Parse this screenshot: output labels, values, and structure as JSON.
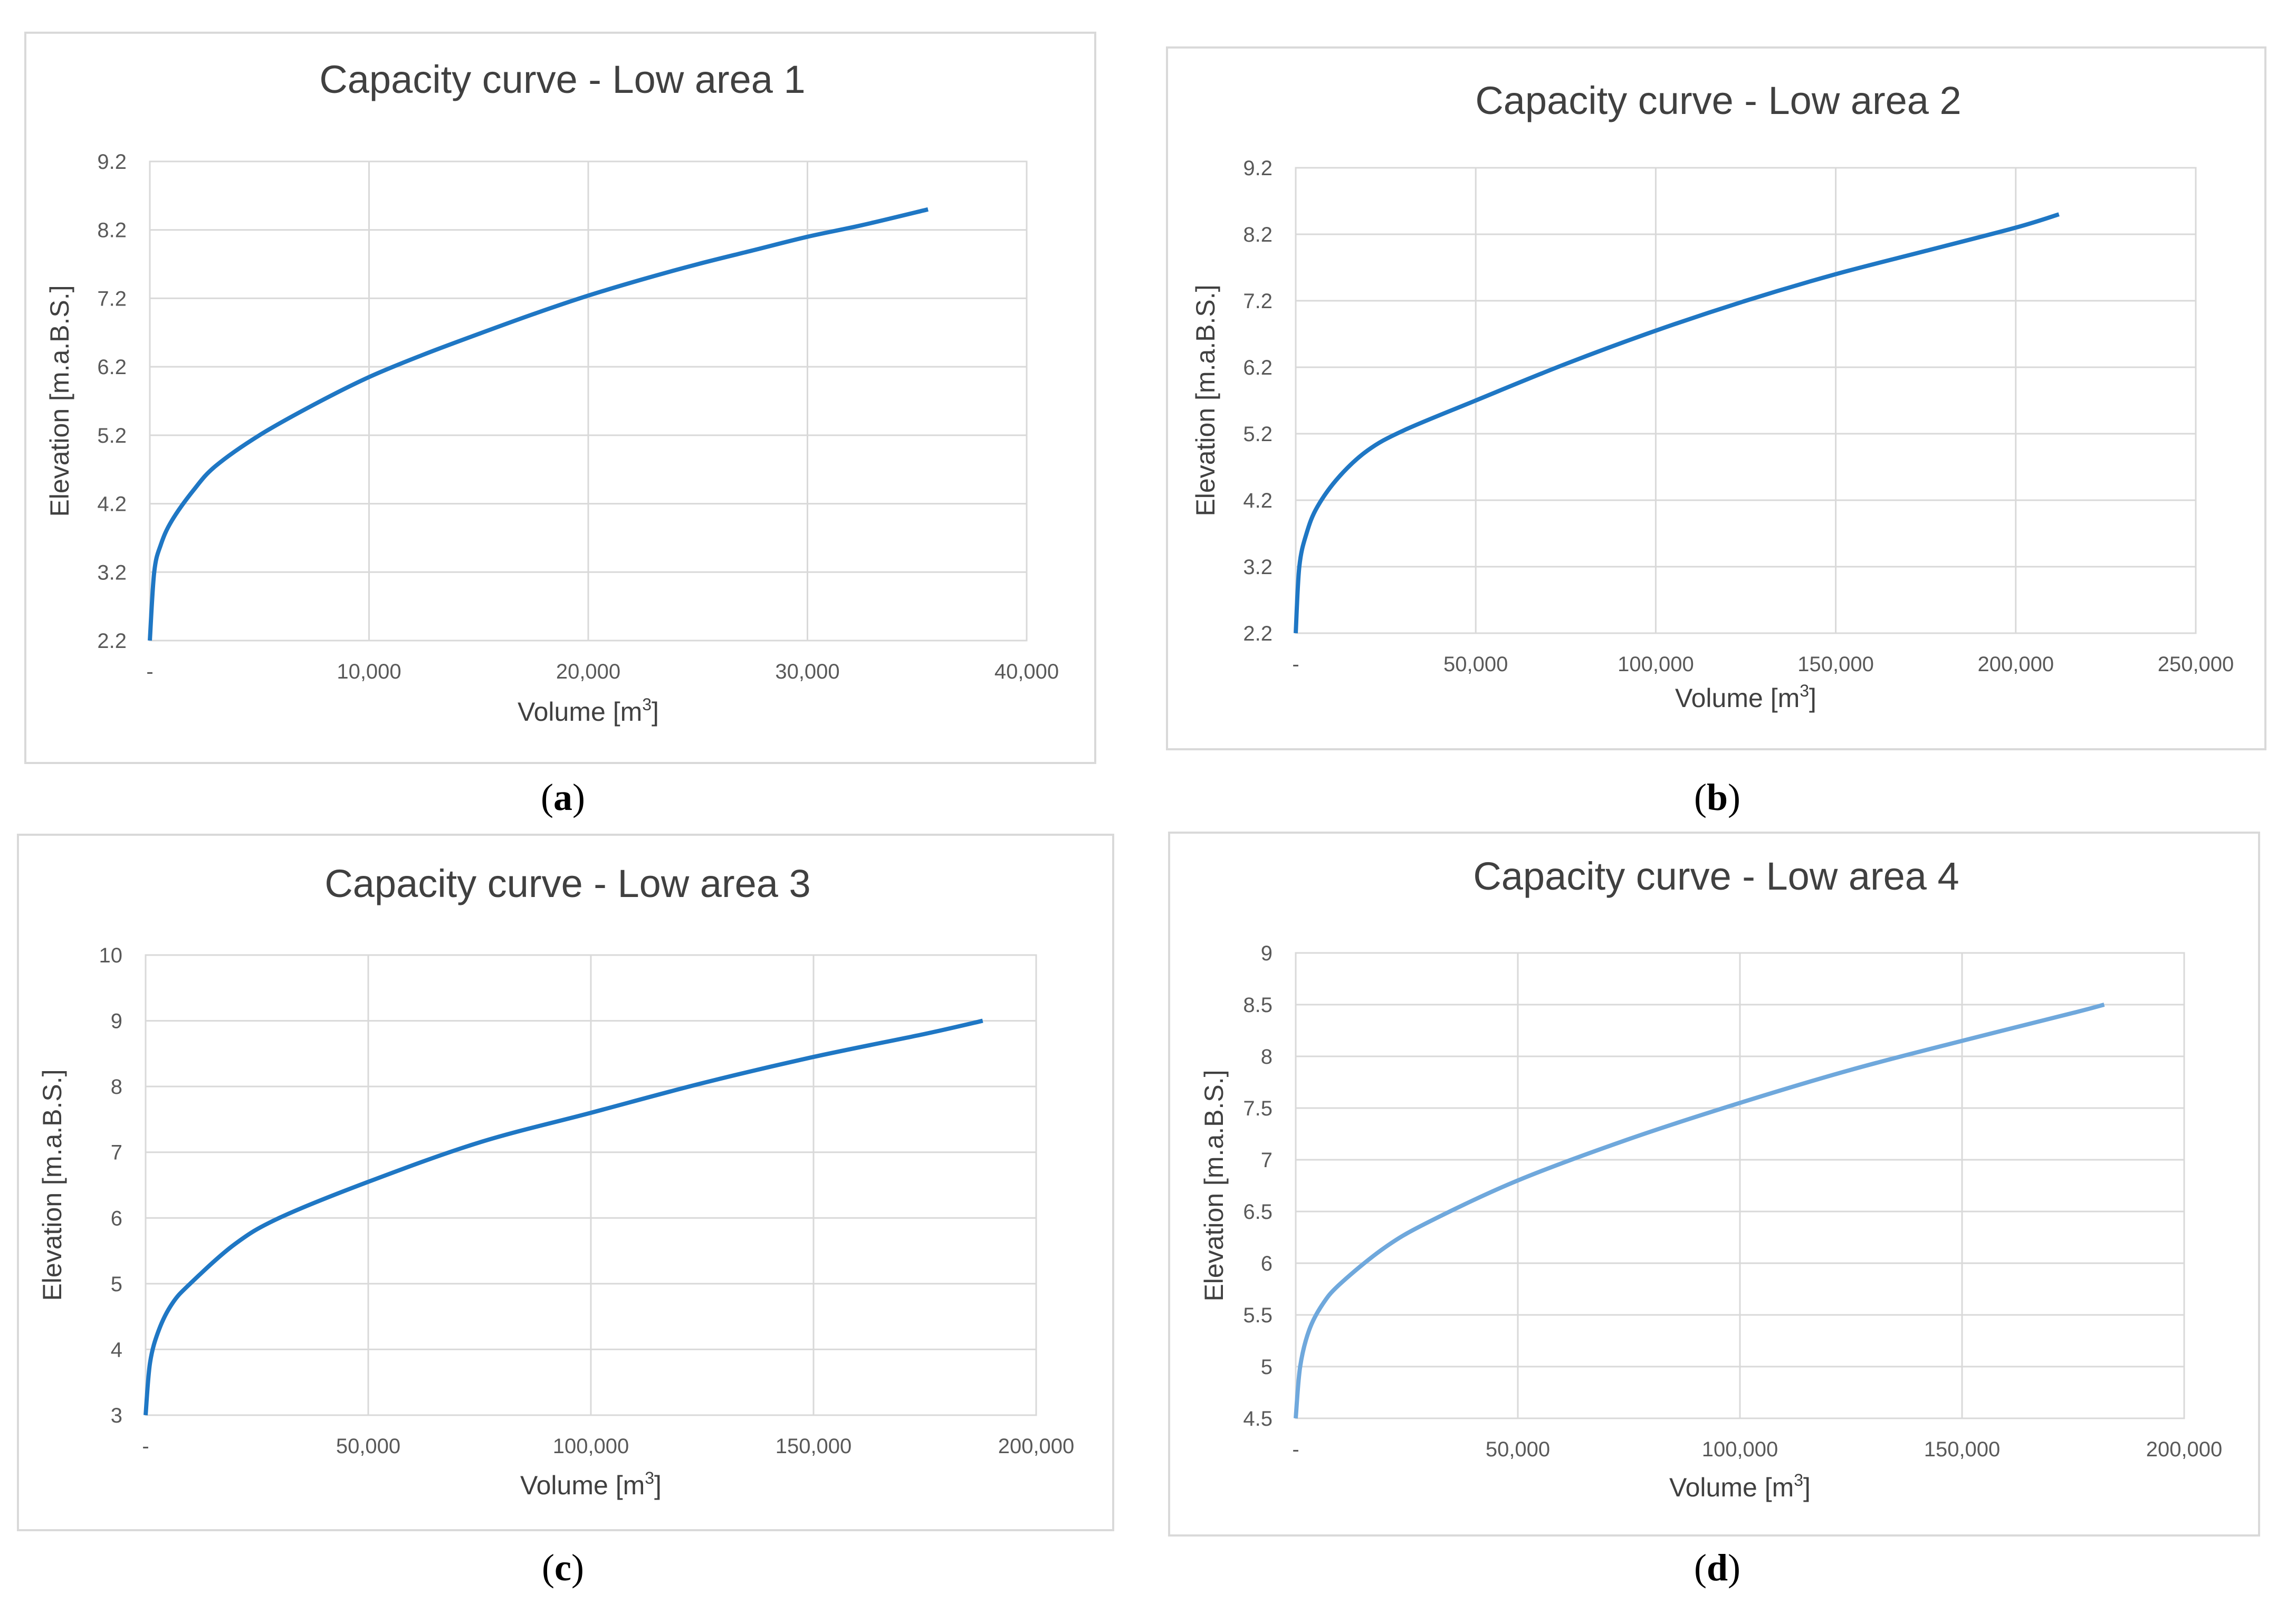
{
  "chart_data": [
    {
      "type": "line",
      "panel_label": "a",
      "title": "Capacity curve - Low area  1",
      "xlabel": "Volume [m",
      "xlabel_sup": "3",
      "xlabel_end": "]",
      "ylabel": "Elevation [m.a.B.S.]",
      "xlim": [
        0,
        40000
      ],
      "ylim": [
        2.2,
        9.2
      ],
      "x_ticks": [
        0,
        10000,
        20000,
        30000,
        40000
      ],
      "x_tick_labels": [
        "-",
        "10,000",
        "20,000",
        "30,000",
        "40,000"
      ],
      "y_ticks": [
        2.2,
        3.2,
        4.2,
        5.2,
        6.2,
        7.2,
        8.2,
        9.2
      ],
      "y_tick_labels": [
        "2.2",
        "3.2",
        "4.2",
        "5.2",
        "6.2",
        "7.2",
        "8.2",
        "9.2"
      ],
      "grid": true,
      "line_color": "#1f77c4",
      "series": [
        {
          "name": "Low area 1",
          "x": [
            0,
            200,
            500,
            1000,
            2000,
            3000,
            5000,
            7500,
            10000,
            12500,
            15000,
            17500,
            20000,
            22500,
            25000,
            27500,
            30000,
            32500,
            35500
          ],
          "y": [
            2.2,
            3.2,
            3.6,
            3.95,
            4.4,
            4.75,
            5.2,
            5.65,
            6.05,
            6.38,
            6.68,
            6.97,
            7.24,
            7.48,
            7.7,
            7.9,
            8.1,
            8.27,
            8.5
          ]
        }
      ]
    },
    {
      "type": "line",
      "panel_label": "b",
      "title": "Capacity curve - Low area  2",
      "xlabel": "Volume [m",
      "xlabel_sup": "3",
      "xlabel_end": "]",
      "ylabel": "Elevation [m.a.B.S.]",
      "xlim": [
        0,
        250000
      ],
      "ylim": [
        2.2,
        9.2
      ],
      "x_ticks": [
        0,
        50000,
        100000,
        150000,
        200000,
        250000
      ],
      "x_tick_labels": [
        "-",
        "50,000",
        "100,000",
        "150,000",
        "200,000",
        "250,000"
      ],
      "y_ticks": [
        2.2,
        3.2,
        4.2,
        5.2,
        6.2,
        7.2,
        8.2,
        9.2
      ],
      "y_tick_labels": [
        "2.2",
        "3.2",
        "4.2",
        "5.2",
        "6.2",
        "7.2",
        "8.2",
        "9.2"
      ],
      "grid": true,
      "line_color": "#1f77c4",
      "series": [
        {
          "name": "Low area 2",
          "x": [
            0,
            1000,
            3000,
            6000,
            12000,
            20000,
            30000,
            50000,
            75000,
            100000,
            125000,
            150000,
            175000,
            200000,
            212000
          ],
          "y": [
            2.2,
            3.2,
            3.7,
            4.1,
            4.55,
            4.95,
            5.25,
            5.7,
            6.25,
            6.75,
            7.2,
            7.6,
            7.95,
            8.3,
            8.5
          ]
        }
      ]
    },
    {
      "type": "line",
      "panel_label": "c",
      "title": "Capacity curve - Low area 3",
      "xlabel": "Volume [m",
      "xlabel_sup": "3",
      "xlabel_end": "]",
      "ylabel": "Elevation [m.a.B.S.]",
      "xlim": [
        0,
        200000
      ],
      "ylim": [
        3,
        10
      ],
      "x_ticks": [
        0,
        50000,
        100000,
        150000,
        200000
      ],
      "x_tick_labels": [
        "-",
        "50,000",
        "100,000",
        "150,000",
        "200,000"
      ],
      "y_ticks": [
        3,
        4,
        5,
        6,
        7,
        8,
        9,
        10
      ],
      "y_tick_labels": [
        "3",
        "4",
        "5",
        "6",
        "7",
        "8",
        "9",
        "10"
      ],
      "grid": true,
      "line_color": "#1f77c4",
      "series": [
        {
          "name": "Low area 3",
          "x": [
            0,
            1000,
            3000,
            6000,
            10000,
            20000,
            30000,
            50000,
            75000,
            100000,
            125000,
            150000,
            175000,
            188000
          ],
          "y": [
            3,
            3.8,
            4.3,
            4.7,
            5.0,
            5.6,
            6.0,
            6.55,
            7.15,
            7.6,
            8.05,
            8.45,
            8.8,
            9.0
          ]
        }
      ]
    },
    {
      "type": "line",
      "panel_label": "d",
      "title": "Capacity curve - Low area 4",
      "xlabel": "Volume [m",
      "xlabel_sup": "3",
      "xlabel_end": "]",
      "ylabel": "Elevation [m.a.B.S.]",
      "xlim": [
        0,
        200000
      ],
      "ylim": [
        4.5,
        9
      ],
      "x_ticks": [
        0,
        50000,
        100000,
        150000,
        200000
      ],
      "x_tick_labels": [
        "-",
        "50,000",
        "100,000",
        "150,000",
        "200,000"
      ],
      "y_ticks": [
        4.5,
        5,
        5.5,
        6,
        6.5,
        7,
        7.5,
        8,
        8.5,
        9
      ],
      "y_tick_labels": [
        "4.5",
        "5",
        "5.5",
        "6",
        "6.5",
        "7",
        "7.5",
        "8",
        "8.5",
        "9"
      ],
      "grid": true,
      "line_color": "#6fa8dc",
      "series": [
        {
          "name": "Low area 4",
          "x": [
            0,
            1000,
            3000,
            6000,
            10000,
            20000,
            30000,
            50000,
            75000,
            100000,
            125000,
            150000,
            175000,
            182000
          ],
          "y": [
            4.5,
            5.0,
            5.35,
            5.6,
            5.8,
            6.15,
            6.4,
            6.8,
            7.2,
            7.55,
            7.87,
            8.15,
            8.42,
            8.5
          ]
        }
      ]
    }
  ]
}
